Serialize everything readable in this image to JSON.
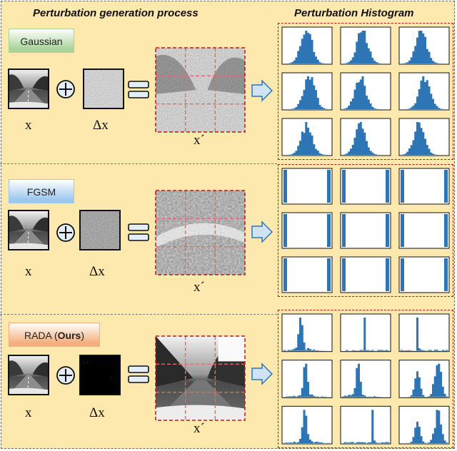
{
  "titles": {
    "left": "Perturbation generation process",
    "right": "Perturbation Histogram"
  },
  "methods": [
    {
      "id": "gaussian",
      "label": "Gaussian",
      "label_bold": "",
      "label_suffix": "",
      "label_color": "#a9d59a",
      "x_label": "x",
      "dx_label": "Δx",
      "xp_label": "x´"
    },
    {
      "id": "fgsm",
      "label": "FGSM",
      "label_bold": "",
      "label_suffix": "",
      "label_color": "#9fc8ee",
      "x_label": "x",
      "dx_label": "Δx",
      "xp_label": "x´"
    },
    {
      "id": "rada",
      "label": "RADA (",
      "label_bold": "Ours",
      "label_suffix": ")",
      "label_color": "#f3b07f",
      "x_label": "x",
      "dx_label": "Δx",
      "xp_label": "x´"
    }
  ],
  "colors": {
    "histogram_bar": "#2e75b6",
    "grid_dash": "#b11a1a",
    "arrow_fill": "#cfe3f3",
    "arrow_stroke": "#2e75b6"
  },
  "histogram_shapes": [
    [
      "gaussian",
      "gaussian",
      "gaussian",
      "gaussian",
      "gaussian",
      "gaussian",
      "gaussian",
      "gaussian",
      "gaussian"
    ],
    [
      "binary",
      "binary",
      "binary",
      "binary",
      "binary",
      "binary",
      "binary",
      "binary",
      "binary"
    ],
    [
      "peaked",
      "spike",
      "spike",
      "peaked",
      "peaked",
      "bimodal",
      "peaked",
      "spike",
      "bimodal"
    ]
  ]
}
